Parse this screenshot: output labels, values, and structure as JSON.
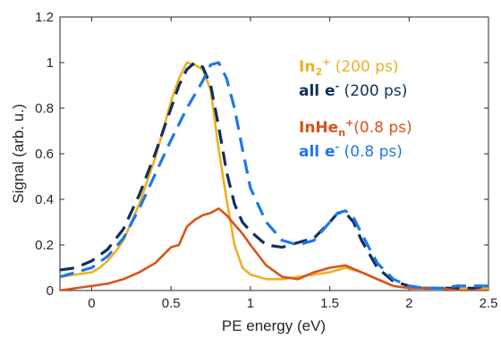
{
  "chart_data": {
    "type": "line",
    "title": "",
    "xlabel": "PE energy (eV)",
    "ylabel": "Signal (arb. u.)",
    "xlim": [
      -0.2,
      2.5
    ],
    "ylim": [
      0,
      1.2
    ],
    "xticks": [
      "0",
      "0.5",
      "1",
      "1.5",
      "2",
      "2.5"
    ],
    "xtick_values": [
      0,
      0.5,
      1,
      1.5,
      2,
      2.5
    ],
    "yticks": [
      "0",
      "0.2",
      "0.4",
      "0.6",
      "0.8",
      "1",
      "1.2"
    ],
    "ytick_values": [
      0,
      0.2,
      0.4,
      0.6,
      0.8,
      1,
      1.2
    ],
    "grid": false,
    "legend_position": "top-right",
    "series": [
      {
        "name": "In2+ (200 ps)",
        "label_main": "In",
        "label_sub": "2",
        "label_sup": "+",
        "label_rest": " (200 ps)",
        "color": "#EDB120",
        "dashed": false,
        "x": [
          -0.2,
          -0.1,
          0.0,
          0.05,
          0.1,
          0.15,
          0.2,
          0.3,
          0.4,
          0.5,
          0.55,
          0.6,
          0.65,
          0.7,
          0.75,
          0.8,
          0.85,
          0.9,
          0.95,
          1.0,
          1.1,
          1.2,
          1.3,
          1.4,
          1.5,
          1.6,
          1.7,
          1.8,
          1.9,
          2.0,
          2.1,
          2.2,
          2.3,
          2.4,
          2.5
        ],
        "y": [
          0.06,
          0.07,
          0.08,
          0.1,
          0.13,
          0.17,
          0.22,
          0.38,
          0.58,
          0.83,
          0.93,
          1.0,
          0.99,
          0.97,
          0.88,
          0.62,
          0.4,
          0.2,
          0.1,
          0.07,
          0.05,
          0.05,
          0.06,
          0.07,
          0.08,
          0.1,
          0.08,
          0.05,
          0.02,
          0.01,
          0.01,
          0.01,
          0.01,
          0.01,
          0.01
        ]
      },
      {
        "name": "all e- (200 ps)",
        "label_main": "all e",
        "label_sub": "",
        "label_sup": "-",
        "label_rest": " (200 ps)",
        "color": "#0F2F5F",
        "dashed": true,
        "x": [
          -0.2,
          -0.1,
          0.0,
          0.1,
          0.2,
          0.3,
          0.4,
          0.5,
          0.55,
          0.6,
          0.65,
          0.7,
          0.75,
          0.8,
          0.85,
          0.9,
          0.95,
          1.0,
          1.1,
          1.2,
          1.3,
          1.4,
          1.5,
          1.55,
          1.6,
          1.65,
          1.7,
          1.8,
          1.9,
          2.0,
          2.1,
          2.2,
          2.3,
          2.4,
          2.5
        ],
        "y": [
          0.09,
          0.1,
          0.13,
          0.18,
          0.27,
          0.42,
          0.6,
          0.8,
          0.9,
          0.97,
          1.0,
          0.98,
          0.9,
          0.72,
          0.52,
          0.38,
          0.3,
          0.26,
          0.2,
          0.19,
          0.21,
          0.23,
          0.3,
          0.34,
          0.34,
          0.3,
          0.22,
          0.1,
          0.04,
          0.02,
          0.01,
          0.01,
          0.01,
          0.01,
          0.02
        ]
      },
      {
        "name": "InHen+(0.8 ps)",
        "label_main": "InHe",
        "label_sub": "n",
        "label_sup": "+",
        "label_rest": "(0.8 ps)",
        "color": "#D95319",
        "dashed": false,
        "x": [
          -0.2,
          -0.1,
          0.0,
          0.1,
          0.2,
          0.3,
          0.4,
          0.5,
          0.55,
          0.6,
          0.65,
          0.7,
          0.75,
          0.8,
          0.85,
          0.9,
          0.95,
          1.0,
          1.1,
          1.2,
          1.3,
          1.4,
          1.5,
          1.6,
          1.7,
          1.8,
          1.9,
          2.0,
          2.1,
          2.2,
          2.3,
          2.4,
          2.5
        ],
        "y": [
          0.0,
          0.01,
          0.02,
          0.03,
          0.05,
          0.08,
          0.12,
          0.19,
          0.2,
          0.28,
          0.31,
          0.33,
          0.34,
          0.36,
          0.33,
          0.29,
          0.25,
          0.2,
          0.11,
          0.06,
          0.05,
          0.08,
          0.1,
          0.11,
          0.08,
          0.05,
          0.02,
          0.01,
          0.01,
          0.01,
          0.0,
          0.0,
          0.0
        ]
      },
      {
        "name": "all e- (0.8 ps)",
        "label_main": "all e",
        "label_sub": "",
        "label_sup": "-",
        "label_rest": " (0.8 ps)",
        "color": "#1F77E8",
        "dashed": true,
        "x": [
          -0.2,
          -0.1,
          0.0,
          0.1,
          0.2,
          0.3,
          0.4,
          0.5,
          0.6,
          0.7,
          0.75,
          0.8,
          0.85,
          0.9,
          0.95,
          1.0,
          1.1,
          1.2,
          1.3,
          1.4,
          1.5,
          1.55,
          1.6,
          1.65,
          1.7,
          1.8,
          1.9,
          2.0,
          2.1,
          2.2,
          2.3,
          2.4,
          2.5
        ],
        "y": [
          0.06,
          0.08,
          0.1,
          0.15,
          0.23,
          0.36,
          0.51,
          0.66,
          0.8,
          0.92,
          0.99,
          1.0,
          0.93,
          0.8,
          0.62,
          0.45,
          0.3,
          0.22,
          0.2,
          0.22,
          0.3,
          0.34,
          0.35,
          0.32,
          0.25,
          0.12,
          0.05,
          0.02,
          0.01,
          0.01,
          0.02,
          0.02,
          0.02
        ]
      }
    ]
  }
}
